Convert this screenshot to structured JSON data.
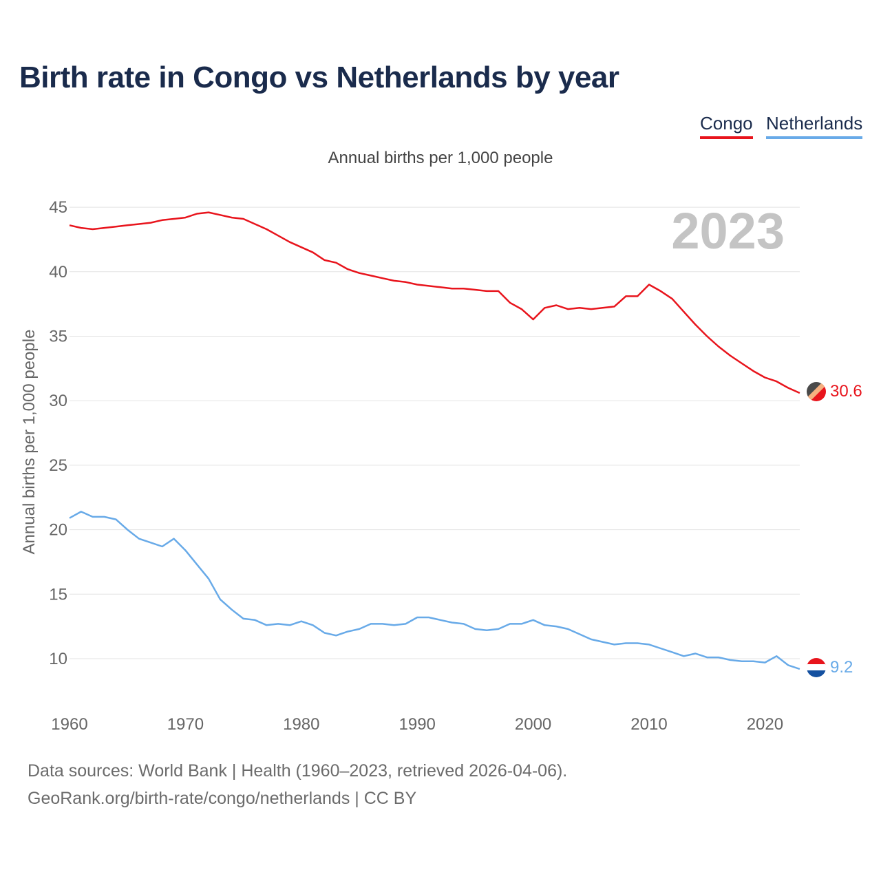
{
  "header": {
    "title": "Birth rate in Congo vs Netherlands by year",
    "subtitle": "Annual births per 1,000 people"
  },
  "legend": [
    {
      "label": "Congo",
      "color": "#e8141c"
    },
    {
      "label": "Netherlands",
      "color": "#68aae8"
    }
  ],
  "footer": {
    "sources": "Data sources: World Bank | Health (1960–2023, retrieved 2026-04-06).",
    "link": "GeoRank.org/birth-rate/congo/netherlands | CC BY"
  },
  "chart_data": {
    "type": "line",
    "title": "Birth rate in Congo vs Netherlands by year",
    "ylabel": "Annual births per 1,000 people",
    "xlabel": "",
    "year_watermark": "2023",
    "xlim": [
      1960,
      2023
    ],
    "ylim": [
      7,
      46
    ],
    "x_ticks": [
      1960,
      1970,
      1980,
      1990,
      2000,
      2010,
      2020
    ],
    "y_ticks": [
      10,
      15,
      20,
      25,
      30,
      35,
      40,
      45
    ],
    "grid": true,
    "legend_position": "top-right",
    "x": [
      1960,
      1961,
      1962,
      1963,
      1964,
      1965,
      1966,
      1967,
      1968,
      1969,
      1970,
      1971,
      1972,
      1973,
      1974,
      1975,
      1976,
      1977,
      1978,
      1979,
      1980,
      1981,
      1982,
      1983,
      1984,
      1985,
      1986,
      1987,
      1988,
      1989,
      1990,
      1991,
      1992,
      1993,
      1994,
      1995,
      1996,
      1997,
      1998,
      1999,
      2000,
      2001,
      2002,
      2003,
      2004,
      2005,
      2006,
      2007,
      2008,
      2009,
      2010,
      2011,
      2012,
      2013,
      2014,
      2015,
      2016,
      2017,
      2018,
      2019,
      2020,
      2021,
      2022,
      2023
    ],
    "series": [
      {
        "name": "Congo",
        "color": "#e8141c",
        "end_label": "30.6",
        "values": [
          43.6,
          43.4,
          43.3,
          43.4,
          43.5,
          43.6,
          43.7,
          43.8,
          44.0,
          44.1,
          44.2,
          44.5,
          44.6,
          44.4,
          44.2,
          44.1,
          43.7,
          43.3,
          42.8,
          42.3,
          41.9,
          41.5,
          40.9,
          40.7,
          40.2,
          39.9,
          39.7,
          39.5,
          39.3,
          39.2,
          39.0,
          38.9,
          38.8,
          38.7,
          38.7,
          38.6,
          38.5,
          38.5,
          37.6,
          37.1,
          36.3,
          37.2,
          37.4,
          37.1,
          37.2,
          37.1,
          37.2,
          37.3,
          38.1,
          38.1,
          39.0,
          38.5,
          37.9,
          36.9,
          35.9,
          35.0,
          34.2,
          33.5,
          32.9,
          32.3,
          31.8,
          31.5,
          31.0,
          30.6
        ]
      },
      {
        "name": "Netherlands",
        "color": "#68aae8",
        "end_label": "9.2",
        "values": [
          20.9,
          21.4,
          21.0,
          21.0,
          20.8,
          20.0,
          19.3,
          19.0,
          18.7,
          19.3,
          18.4,
          17.3,
          16.2,
          14.6,
          13.8,
          13.1,
          13.0,
          12.6,
          12.7,
          12.6,
          12.9,
          12.6,
          12.0,
          11.8,
          12.1,
          12.3,
          12.7,
          12.7,
          12.6,
          12.7,
          13.2,
          13.2,
          13.0,
          12.8,
          12.7,
          12.3,
          12.2,
          12.3,
          12.7,
          12.7,
          13.0,
          12.6,
          12.5,
          12.3,
          11.9,
          11.5,
          11.3,
          11.1,
          11.2,
          11.2,
          11.1,
          10.8,
          10.5,
          10.2,
          10.4,
          10.1,
          10.1,
          9.9,
          9.8,
          9.8,
          9.7,
          10.2,
          9.5,
          9.2
        ]
      }
    ]
  }
}
